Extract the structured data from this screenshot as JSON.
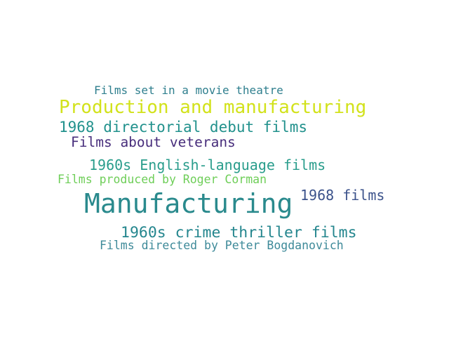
{
  "words": [
    {
      "text": "Films set in a movie theatre",
      "color": "#2f7f8e"
    },
    {
      "text": "Production and manufacturing",
      "color": "#d2e21b"
    },
    {
      "text": "1968 directorial debut films",
      "color": "#21918c"
    },
    {
      "text": "Films about veterans",
      "color": "#472d7b"
    },
    {
      "text": "1960s English-language films",
      "color": "#2a9d8c"
    },
    {
      "text": "Films produced by Roger Corman",
      "color": "#6ece58"
    },
    {
      "text": "1968 films",
      "color": "#3b528b"
    },
    {
      "text": "Manufacturing",
      "color": "#2a8a8d"
    },
    {
      "text": "1960s crime thriller films",
      "color": "#24868e"
    },
    {
      "text": "Films directed by Peter Bogdanovich",
      "color": "#3e8a99"
    }
  ]
}
